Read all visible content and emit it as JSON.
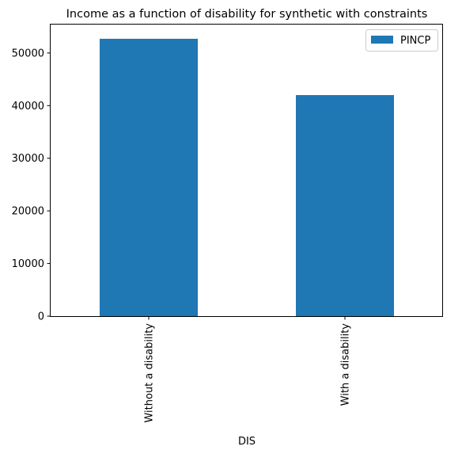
{
  "chart_data": {
    "type": "bar",
    "title": "Income as a function of disability for synthetic with constraints",
    "xlabel": "DIS",
    "ylabel": "",
    "categories": [
      "Without a disability",
      "With a disability"
    ],
    "series": [
      {
        "name": "PINCP",
        "values": [
          52700,
          42000
        ],
        "color": "#1f77b4"
      }
    ],
    "ylim": [
      0,
      55400
    ],
    "yticks": [
      0,
      10000,
      20000,
      30000,
      40000,
      50000
    ],
    "grid": false,
    "legend_position": "top-right"
  }
}
